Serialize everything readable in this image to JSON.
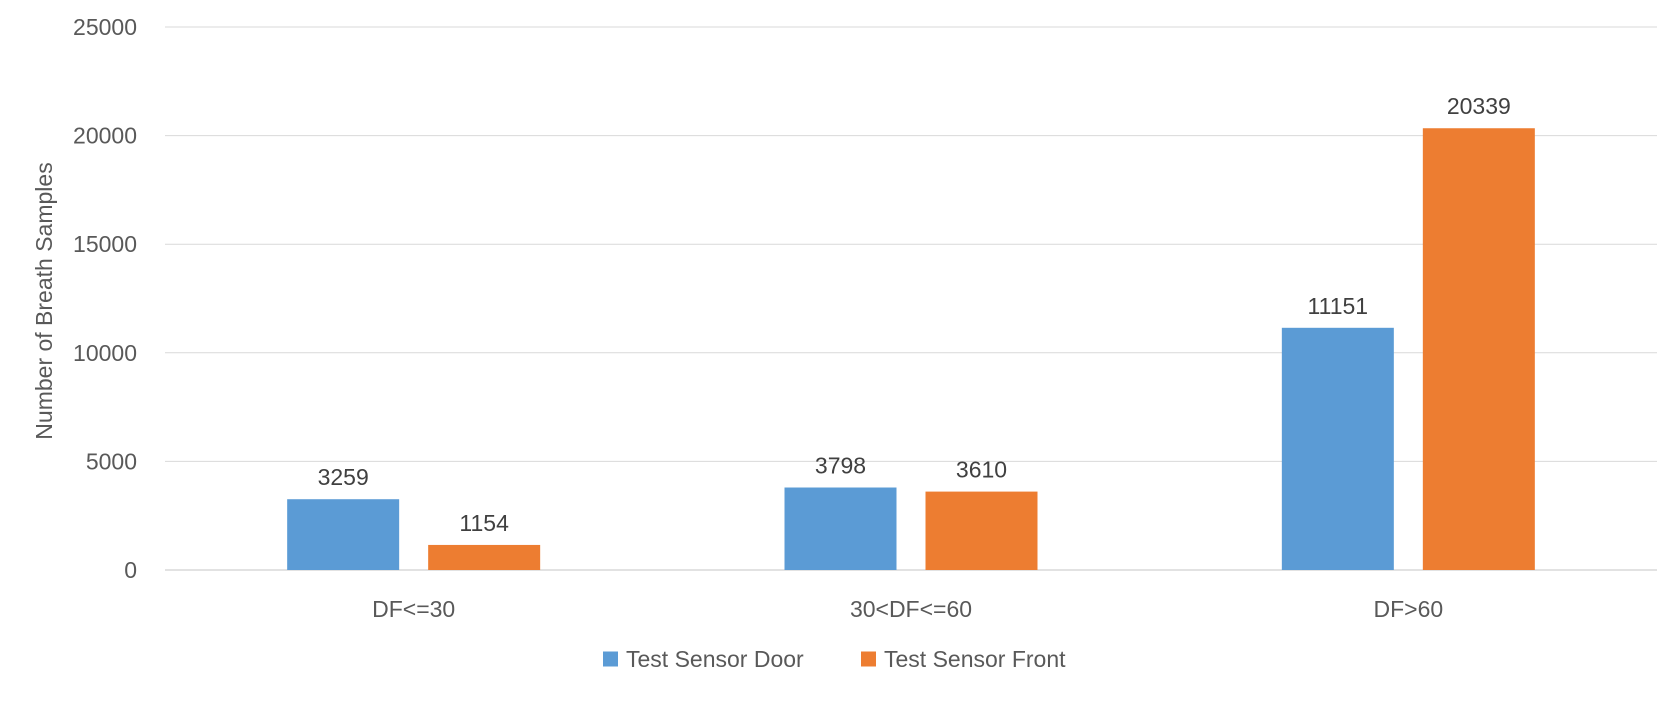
{
  "chart_data": {
    "type": "bar",
    "categories": [
      "DF<=30",
      "30<DF<=60",
      "DF>60"
    ],
    "series": [
      {
        "name": "Test Sensor Door",
        "values": [
          3259,
          3798,
          11151
        ],
        "color": "#5b9bd5"
      },
      {
        "name": "Test Sensor Front",
        "values": [
          1154,
          3610,
          20339
        ],
        "color": "#ed7d31"
      }
    ],
    "title": "",
    "xlabel": "",
    "ylabel": "Number of Breath Samples",
    "ylim": [
      0,
      25000
    ],
    "yticks": [
      0,
      5000,
      10000,
      15000,
      20000,
      25000
    ],
    "grid": true,
    "legend": "bottom",
    "data_labels": true
  }
}
